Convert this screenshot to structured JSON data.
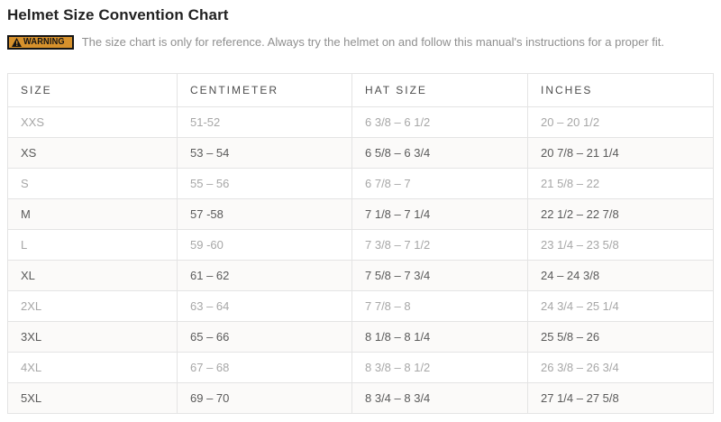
{
  "page": {
    "title": "Helmet Size Convention Chart"
  },
  "warning": {
    "badge_label": "WARNING",
    "badge_icon": "warning-triangle-icon",
    "text": "The size chart is only for reference. Always try the helmet on and follow this manual's instructions for a proper fit."
  },
  "colors": {
    "title_text": "#222222",
    "warning_badge_bg": "#d6912c",
    "warning_badge_border": "#141414",
    "warning_text": "#8f8f8f",
    "table_border": "#e4e4e4",
    "header_text": "#4d4d4d",
    "row_text_light": "#a7a7a7",
    "row_text_dark": "#5a5a5a"
  },
  "table": {
    "headers": [
      "SIZE",
      "CENTIMETER",
      "HAT SIZE",
      "INCHES"
    ],
    "rows": [
      [
        "XXS",
        "51-52",
        "6 3/8 – 6 1/2",
        "20 – 20 1/2"
      ],
      [
        "XS",
        "53 – 54",
        "6 5/8 – 6 3/4",
        "20 7/8 – 21 1/4"
      ],
      [
        "S",
        "55 – 56",
        "6 7/8 – 7",
        "21 5/8 – 22"
      ],
      [
        "M",
        "57 -58",
        "7 1/8 – 7 1/4",
        "22 1/2 – 22 7/8"
      ],
      [
        "L",
        "59 -60",
        "7 3/8 – 7 1/2",
        "23 1/4 – 23 5/8"
      ],
      [
        "XL",
        "61 – 62",
        "7 5/8 – 7 3/4",
        "24 – 24 3/8"
      ],
      [
        "2XL",
        "63 – 64",
        "7 7/8 – 8",
        "24 3/4 – 25 1/4"
      ],
      [
        "3XL",
        "65 – 66",
        "8 1/8 – 8 1/4",
        "25 5/8 – 26"
      ],
      [
        "4XL",
        "67 – 68",
        "8 3/8 – 8 1/2",
        "26 3/8 – 26 3/4"
      ],
      [
        "5XL",
        "69 – 70",
        "8 3/4 – 8 3/4",
        "27 1/4 – 27 5/8"
      ]
    ]
  }
}
